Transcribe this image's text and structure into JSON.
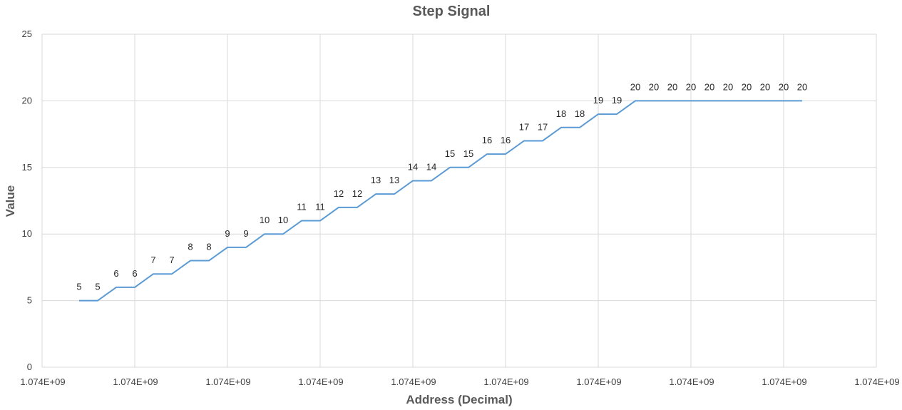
{
  "chart_data": {
    "type": "line",
    "title": "Step Signal",
    "xlabel": "Address (Decimal)",
    "ylabel": "Value",
    "ylim": [
      0,
      25
    ],
    "y_ticks": [
      0,
      5,
      10,
      15,
      20,
      25
    ],
    "x_tick_labels": [
      "1.074E+09",
      "1.074E+09",
      "1.074E+09",
      "1.074E+09",
      "1.074E+09",
      "1.074E+09",
      "1.074E+09",
      "1.074E+09",
      "1.074E+09",
      "1.074E+09"
    ],
    "grid": true,
    "legend": "none",
    "line_color": "#5b9bd5",
    "series": [
      {
        "values": [
          5,
          5,
          6,
          6,
          7,
          7,
          8,
          8,
          9,
          9,
          10,
          10,
          11,
          11,
          12,
          12,
          13,
          13,
          14,
          14,
          15,
          15,
          16,
          16,
          17,
          17,
          18,
          18,
          19,
          19,
          20,
          20,
          20,
          20,
          20,
          20,
          20,
          20,
          20,
          20
        ]
      }
    ]
  }
}
